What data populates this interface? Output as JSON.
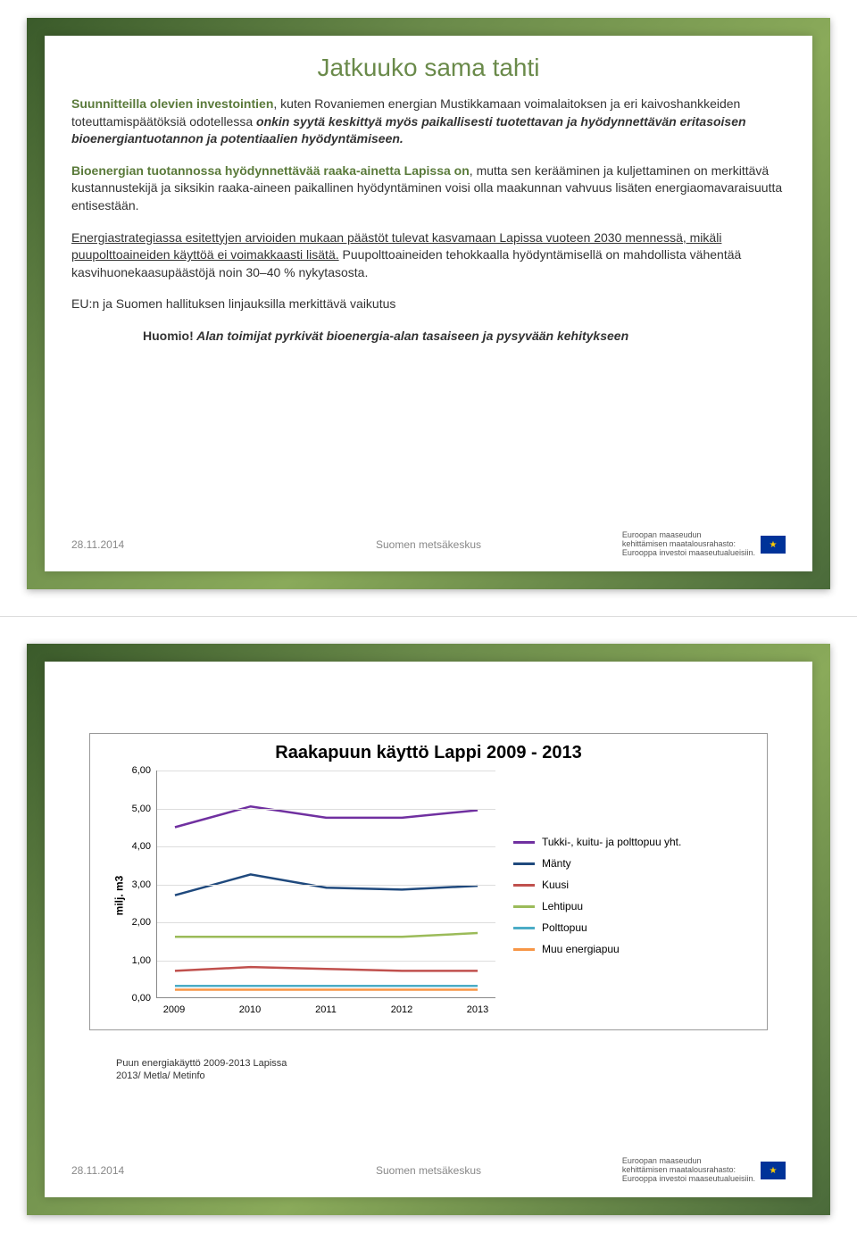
{
  "slide1": {
    "title": "Jatkuuko sama tahti",
    "p1_lead": "Suunnitteilla olevien investointien",
    "p1_rest": ", kuten Rovaniemen energian Mustikkamaan voimalaitoksen ja eri kaivoshankkeiden toteuttamispäätöksiä odotellessa ",
    "p1_italic": "onkin syytä keskittyä myös paikallisesti tuotettavan ja hyödynnettävän eritasoisen bioenergiantuotannon ja potentiaalien hyödyntämiseen.",
    "p2_lead": "Bioenergian tuotannossa hyödynnettävää raaka-ainetta Lapissa on",
    "p2_rest": ", mutta sen kerääminen ja kuljettaminen on merkittävä kustannustekijä ja siksikin raaka-aineen paikallinen hyödyntäminen voisi olla maakunnan vahvuus lisäten energiaomavaraisuutta entisestään.",
    "p3_u": "Energiastrategiassa esitettyjen arvioiden mukaan päästöt tulevat kasvamaan Lapissa vuoteen 2030 mennessä, mikäli puupolttoaineiden käyttöä ei voimakkaasti lisätä.",
    "p3_rest": " Puupolttoaineiden tehokkaalla hyödyntämisellä on mahdollista vähentää kasvihuonekaasupäästöjä noin 30–40 % nykytasosta.",
    "p4": "EU:n ja Suomen hallituksen linjauksilla merkittävä vaikutus",
    "huomio_label": "Huomio!",
    "huomio_text": " Alan toimijat pyrkivät bioenergia-alan tasaiseen ja pysyvään kehitykseen",
    "date": "28.11.2014",
    "org": "Suomen metsäkeskus",
    "eu_line1": "Euroopan maaseudun",
    "eu_line2": "kehittämisen maatalousrahasto:",
    "eu_line3": "Eurooppa investoi maaseutualueisiin."
  },
  "slide2": {
    "chart": {
      "type": "line",
      "title": "Raakapuun käyttö Lappi 2009 - 2013",
      "ylabel": "milj. m3",
      "categories": [
        "2009",
        "2010",
        "2011",
        "2012",
        "2013"
      ],
      "ylim": [
        0,
        6
      ],
      "ytick_step": 1,
      "y_tick_labels": [
        "0,00",
        "1,00",
        "2,00",
        "3,00",
        "4,00",
        "5,00",
        "6,00"
      ],
      "line_width": 2.5,
      "series": [
        {
          "name": "Tukki-, kuitu- ja polttopuu yht.",
          "color": "#7030a0",
          "values": [
            4.5,
            5.05,
            4.75,
            4.75,
            4.95
          ]
        },
        {
          "name": "Mänty",
          "color": "#1f497d",
          "values": [
            2.7,
            3.25,
            2.9,
            2.85,
            2.95
          ]
        },
        {
          "name": "Kuusi",
          "color": "#c0504d",
          "values": [
            0.7,
            0.8,
            0.75,
            0.7,
            0.7
          ]
        },
        {
          "name": "Lehtipuu",
          "color": "#9bbb59",
          "values": [
            1.6,
            1.6,
            1.6,
            1.6,
            1.7
          ]
        },
        {
          "name": "Polttopuu",
          "color": "#4bacc6",
          "values": [
            0.3,
            0.3,
            0.3,
            0.3,
            0.3
          ]
        },
        {
          "name": "Muu energiapuu",
          "color": "#f79646",
          "values": [
            0.2,
            0.2,
            0.2,
            0.2,
            0.2
          ]
        }
      ],
      "background_color": "#ffffff",
      "grid_color": "#dddddd",
      "axis_color": "#888888",
      "tick_fontsize": 11,
      "title_fontsize": 20,
      "legend_fontsize": 12
    },
    "caption_line1": "Puun energiakäyttö 2009-2013 Lapissa",
    "caption_line2": "2013/ Metla/ Metinfo",
    "date": "28.11.2014",
    "org": "Suomen metsäkeskus",
    "eu_line1": "Euroopan maaseudun",
    "eu_line2": "kehittämisen maatalousrahasto:",
    "eu_line3": "Eurooppa investoi maaseutualueisiin."
  }
}
